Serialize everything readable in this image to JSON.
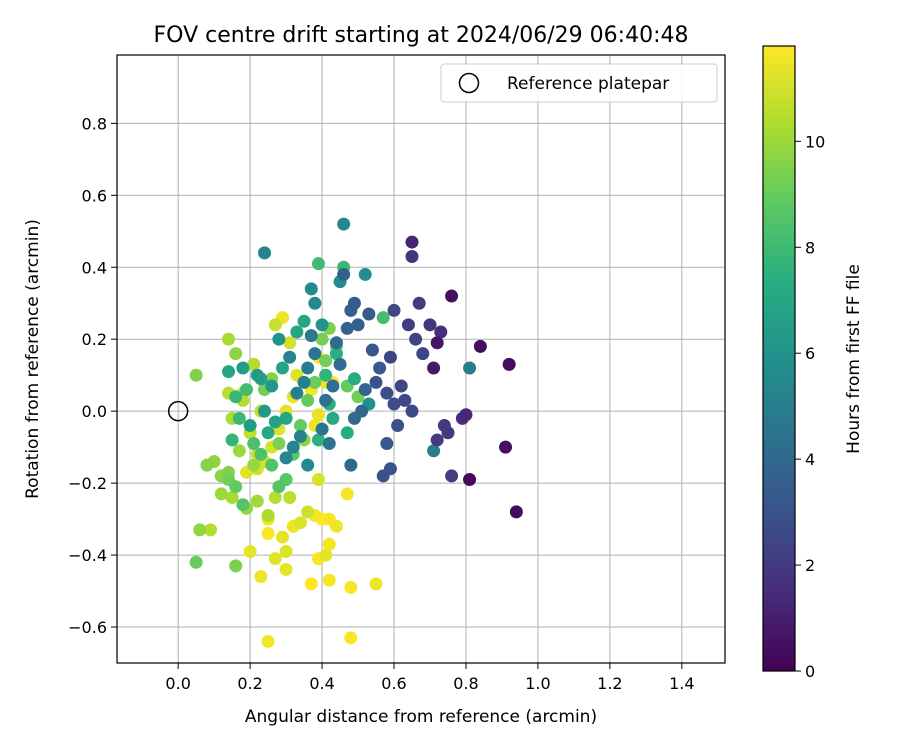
{
  "chart_data": {
    "type": "scatter",
    "title": "FOV centre drift starting at 2024/06/29 06:40:48",
    "xlabel": "Angular distance from reference (arcmin)",
    "ylabel": "Rotation from reference (arcmin)",
    "xlim": [
      -0.17,
      1.52
    ],
    "ylim": [
      -0.7,
      0.99
    ],
    "xticks": [
      0.0,
      0.2,
      0.4,
      0.6,
      0.8,
      1.0,
      1.2,
      1.4
    ],
    "xtick_labels": [
      "0.0",
      "0.2",
      "0.4",
      "0.6",
      "0.8",
      "1.0",
      "1.2",
      "1.4"
    ],
    "yticks": [
      -0.6,
      -0.4,
      -0.2,
      0.0,
      0.2,
      0.4,
      0.6,
      0.8
    ],
    "ytick_labels": [
      "−0.6",
      "−0.4",
      "−0.2",
      "0.0",
      "0.2",
      "0.4",
      "0.6",
      "0.8"
    ],
    "grid": true,
    "legend": {
      "label": "Reference platepar",
      "position": "top-right",
      "marker": "open-circle"
    },
    "reference_point": {
      "x": 0.0,
      "y": 0.0
    },
    "colorbar": {
      "label": "Hours from first FF file",
      "colormap": "viridis",
      "range": [
        0,
        11.8
      ],
      "ticks": [
        0,
        2,
        4,
        6,
        8,
        10
      ],
      "tick_labels": [
        "0",
        "2",
        "4",
        "6",
        "8",
        "10"
      ]
    },
    "points": [
      [
        0.81,
        -0.19,
        0.3
      ],
      [
        0.94,
        -0.28,
        0.3
      ],
      [
        0.92,
        0.13,
        0.4
      ],
      [
        0.84,
        0.18,
        0.4
      ],
      [
        0.91,
        -0.1,
        0.5
      ],
      [
        0.76,
        0.32,
        0.5
      ],
      [
        0.72,
        0.19,
        0.7
      ],
      [
        0.71,
        0.12,
        0.8
      ],
      [
        0.65,
        0.47,
        1.2
      ],
      [
        0.65,
        0.43,
        1.8
      ],
      [
        0.8,
        -0.01,
        1.3
      ],
      [
        0.79,
        -0.02,
        1.6
      ],
      [
        0.73,
        0.22,
        1.6
      ],
      [
        0.7,
        0.24,
        1.8
      ],
      [
        0.74,
        -0.04,
        1.9
      ],
      [
        0.75,
        -0.06,
        2.0
      ],
      [
        0.72,
        -0.08,
        2.0
      ],
      [
        0.76,
        -0.18,
        2.1
      ],
      [
        0.67,
        0.3,
        2.1
      ],
      [
        0.64,
        0.24,
        2.2
      ],
      [
        0.66,
        0.2,
        2.3
      ],
      [
        0.68,
        0.16,
        2.4
      ],
      [
        0.6,
        0.28,
        2.5
      ],
      [
        0.59,
        0.15,
        2.4
      ],
      [
        0.62,
        0.07,
        2.5
      ],
      [
        0.63,
        0.03,
        2.6
      ],
      [
        0.65,
        0.0,
        2.6
      ],
      [
        0.6,
        0.02,
        2.7
      ],
      [
        0.58,
        0.05,
        2.8
      ],
      [
        0.61,
        -0.04,
        2.9
      ],
      [
        0.55,
        0.08,
        3.0
      ],
      [
        0.57,
        -0.18,
        3.0
      ],
      [
        0.59,
        -0.16,
        3.1
      ],
      [
        0.58,
        -0.09,
        3.2
      ],
      [
        0.54,
        0.17,
        3.2
      ],
      [
        0.56,
        0.12,
        3.3
      ],
      [
        0.53,
        0.27,
        3.4
      ],
      [
        0.49,
        0.3,
        3.4
      ],
      [
        0.5,
        0.24,
        3.5
      ],
      [
        0.46,
        0.38,
        3.6
      ],
      [
        0.48,
        0.28,
        3.6
      ],
      [
        0.47,
        0.23,
        3.7
      ],
      [
        0.52,
        0.06,
        3.8
      ],
      [
        0.51,
        0.0,
        3.9
      ],
      [
        0.49,
        -0.02,
        4.0
      ],
      [
        0.48,
        -0.15,
        4.0
      ],
      [
        0.44,
        0.19,
        4.1
      ],
      [
        0.45,
        0.13,
        4.2
      ],
      [
        0.43,
        0.07,
        4.3
      ],
      [
        0.41,
        0.03,
        4.4
      ],
      [
        0.4,
        -0.05,
        4.5
      ],
      [
        0.42,
        -0.09,
        4.6
      ],
      [
        0.38,
        0.16,
        4.7
      ],
      [
        0.37,
        0.21,
        4.8
      ],
      [
        0.36,
        0.12,
        4.9
      ],
      [
        0.35,
        0.08,
        5.0
      ],
      [
        0.33,
        0.05,
        5.1
      ],
      [
        0.31,
        0.15,
        5.2
      ],
      [
        0.34,
        -0.07,
        5.3
      ],
      [
        0.32,
        -0.1,
        5.3
      ],
      [
        0.3,
        -0.13,
        5.4
      ],
      [
        0.36,
        -0.15,
        5.5
      ],
      [
        0.38,
        0.3,
        5.5
      ],
      [
        0.37,
        0.34,
        5.6
      ],
      [
        0.45,
        0.36,
        5.7
      ],
      [
        0.52,
        0.38,
        5.8
      ],
      [
        0.53,
        0.02,
        5.9
      ],
      [
        0.4,
        0.24,
        6.0
      ],
      [
        0.81,
        0.12,
        5.0
      ],
      [
        0.71,
        -0.11,
        5.0
      ],
      [
        0.24,
        0.44,
        5.3
      ],
      [
        0.46,
        0.52,
        5.4
      ],
      [
        0.28,
        0.2,
        6.1
      ],
      [
        0.26,
        0.07,
        6.2
      ],
      [
        0.24,
        0.0,
        6.3
      ],
      [
        0.22,
        0.1,
        6.4
      ],
      [
        0.2,
        -0.04,
        6.5
      ],
      [
        0.23,
        0.09,
        6.6
      ],
      [
        0.27,
        -0.03,
        6.7
      ],
      [
        0.29,
        0.12,
        6.8
      ],
      [
        0.33,
        0.22,
        6.9
      ],
      [
        0.35,
        0.25,
        7.0
      ],
      [
        0.3,
        -0.02,
        7.0
      ],
      [
        0.25,
        -0.06,
        7.1
      ],
      [
        0.43,
        -0.02,
        7.1
      ],
      [
        0.47,
        -0.06,
        7.2
      ],
      [
        0.49,
        0.09,
        7.3
      ],
      [
        0.44,
        0.16,
        7.4
      ],
      [
        0.42,
        0.02,
        7.4
      ],
      [
        0.39,
        -0.08,
        7.5
      ],
      [
        0.41,
        0.1,
        7.6
      ],
      [
        0.46,
        0.4,
        7.8
      ],
      [
        0.39,
        0.41,
        8.0
      ],
      [
        0.57,
        0.26,
        8.2
      ],
      [
        0.18,
        0.12,
        6.5
      ],
      [
        0.14,
        0.11,
        7.0
      ],
      [
        0.16,
        0.04,
        7.8
      ],
      [
        0.15,
        -0.08,
        7.7
      ],
      [
        0.17,
        -0.02,
        7.9
      ],
      [
        0.19,
        0.06,
        8.1
      ],
      [
        0.21,
        -0.09,
        8.3
      ],
      [
        0.23,
        -0.12,
        8.4
      ],
      [
        0.26,
        -0.15,
        8.5
      ],
      [
        0.28,
        -0.21,
        8.6
      ],
      [
        0.3,
        -0.19,
        8.7
      ],
      [
        0.32,
        -0.12,
        8.8
      ],
      [
        0.34,
        -0.04,
        8.9
      ],
      [
        0.36,
        0.03,
        9.0
      ],
      [
        0.38,
        0.08,
        9.1
      ],
      [
        0.41,
        0.14,
        9.2
      ],
      [
        0.4,
        0.2,
        9.3
      ],
      [
        0.44,
        0.18,
        9.3
      ],
      [
        0.42,
        0.23,
        9.4
      ],
      [
        0.47,
        0.07,
        9.0
      ],
      [
        0.5,
        0.04,
        9.2
      ],
      [
        0.18,
        -0.26,
        8.6
      ],
      [
        0.16,
        -0.21,
        8.9
      ],
      [
        0.14,
        -0.19,
        9.2
      ],
      [
        0.14,
        -0.17,
        9.5
      ],
      [
        0.12,
        -0.18,
        9.7
      ],
      [
        0.1,
        -0.14,
        9.8
      ],
      [
        0.08,
        -0.15,
        9.6
      ],
      [
        0.12,
        -0.23,
        10.0
      ],
      [
        0.15,
        -0.24,
        10.2
      ],
      [
        0.19,
        -0.27,
        9.9
      ],
      [
        0.22,
        -0.25,
        10.1
      ],
      [
        0.25,
        -0.29,
        10.3
      ],
      [
        0.27,
        -0.24,
        10.5
      ],
      [
        0.16,
        -0.43,
        9.4
      ],
      [
        0.05,
        -0.42,
        9.0
      ],
      [
        0.06,
        -0.33,
        9.8
      ],
      [
        0.09,
        -0.33,
        10.4
      ],
      [
        0.05,
        0.1,
        9.5
      ],
      [
        0.14,
        0.2,
        10.2
      ],
      [
        0.16,
        0.16,
        9.7
      ],
      [
        0.14,
        0.05,
        10.6
      ],
      [
        0.15,
        -0.02,
        10.3
      ],
      [
        0.18,
        0.03,
        10.5
      ],
      [
        0.2,
        -0.06,
        10.7
      ],
      [
        0.22,
        -0.12,
        10.9
      ],
      [
        0.24,
        -0.14,
        11.0
      ],
      [
        0.26,
        -0.1,
        11.1
      ],
      [
        0.28,
        -0.05,
        11.2
      ],
      [
        0.3,
        0.0,
        11.3
      ],
      [
        0.32,
        0.04,
        11.4
      ],
      [
        0.27,
        0.24,
        10.8
      ],
      [
        0.29,
        0.26,
        11.5
      ],
      [
        0.31,
        0.19,
        11.0
      ],
      [
        0.33,
        0.1,
        11.2
      ],
      [
        0.37,
        0.06,
        11.6
      ],
      [
        0.39,
        0.15,
        11.7
      ],
      [
        0.41,
        0.08,
        11.6
      ],
      [
        0.39,
        -0.01,
        11.4
      ],
      [
        0.38,
        -0.04,
        11.5
      ],
      [
        0.4,
        -0.05,
        11.7
      ],
      [
        0.36,
        -0.28,
        10.9
      ],
      [
        0.34,
        -0.31,
        11.2
      ],
      [
        0.31,
        -0.24,
        10.6
      ],
      [
        0.32,
        -0.32,
        11.5
      ],
      [
        0.29,
        -0.35,
        11.3
      ],
      [
        0.25,
        -0.3,
        11.6
      ],
      [
        0.25,
        -0.34,
        11.7
      ],
      [
        0.2,
        -0.39,
        11.4
      ],
      [
        0.22,
        -0.16,
        11.0
      ],
      [
        0.19,
        -0.17,
        11.3
      ],
      [
        0.39,
        -0.19,
        11.1
      ],
      [
        0.38,
        -0.29,
        11.6
      ],
      [
        0.4,
        -0.3,
        11.8
      ],
      [
        0.42,
        -0.3,
        11.7
      ],
      [
        0.44,
        -0.32,
        11.5
      ],
      [
        0.42,
        -0.37,
        11.6
      ],
      [
        0.41,
        -0.4,
        11.4
      ],
      [
        0.39,
        -0.41,
        11.7
      ],
      [
        0.37,
        -0.48,
        11.8
      ],
      [
        0.42,
        -0.47,
        11.6
      ],
      [
        0.48,
        -0.49,
        11.7
      ],
      [
        0.55,
        -0.48,
        11.5
      ],
      [
        0.47,
        -0.23,
        11.6
      ],
      [
        0.48,
        -0.63,
        11.7
      ],
      [
        0.25,
        -0.64,
        11.6
      ],
      [
        0.3,
        -0.44,
        11.4
      ],
      [
        0.27,
        -0.41,
        11.3
      ],
      [
        0.23,
        -0.46,
        11.5
      ],
      [
        0.3,
        -0.39,
        11.2
      ],
      [
        0.43,
        0.08,
        11.8
      ],
      [
        0.12,
        -0.18,
        10.8
      ],
      [
        0.17,
        -0.11,
        10.0
      ],
      [
        0.18,
        0.05,
        11.0
      ],
      [
        0.21,
        0.13,
        10.4
      ],
      [
        0.23,
        0.0,
        10.7
      ],
      [
        0.24,
        0.06,
        9.2
      ],
      [
        0.26,
        0.09,
        9.6
      ],
      [
        0.21,
        -0.15,
        9.9
      ],
      [
        0.28,
        -0.09,
        9.4
      ],
      [
        0.35,
        -0.08,
        9.8
      ]
    ]
  }
}
